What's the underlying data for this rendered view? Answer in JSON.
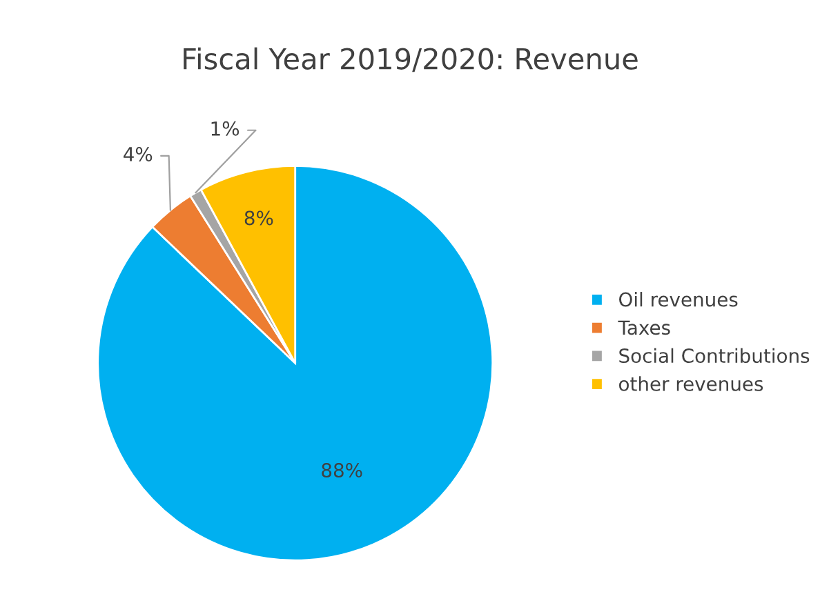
{
  "chart_data": {
    "type": "pie",
    "title": "Fiscal Year 2019/2020: Revenue",
    "categories": [
      "Oil revenues",
      "Taxes",
      "Social Contributions",
      "other revenues"
    ],
    "values": [
      88,
      4,
      1,
      8
    ],
    "colors": [
      "#00b0f0",
      "#ed7d31",
      "#a5a5a5",
      "#ffc000"
    ],
    "value_labels": [
      "88%",
      "4%",
      "1%",
      "8%"
    ],
    "legend": "right"
  }
}
